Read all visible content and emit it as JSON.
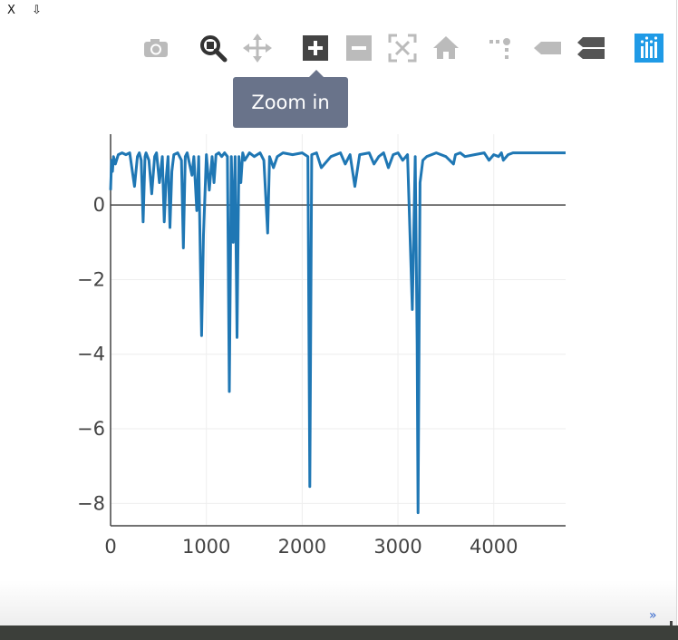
{
  "window": {
    "close_label": "X",
    "download_label": "⇩"
  },
  "toolbar": {
    "buttons": [
      {
        "name": "camera-icon",
        "title": "Download plot as a png"
      },
      {
        "name": "zoom-icon",
        "title": "Zoom"
      },
      {
        "name": "pan-icon",
        "title": "Pan"
      },
      {
        "name": "zoom-in-icon",
        "title": "Zoom in"
      },
      {
        "name": "zoom-out-icon",
        "title": "Zoom out"
      },
      {
        "name": "autoscale-icon",
        "title": "Autoscale"
      },
      {
        "name": "home-icon",
        "title": "Reset axes"
      },
      {
        "name": "spike-lines-icon",
        "title": "Toggle Spike Lines"
      },
      {
        "name": "hover-closest-icon",
        "title": "Show closest data on hover"
      },
      {
        "name": "hover-compare-icon",
        "title": "Compare data on hover"
      },
      {
        "name": "plotly-logo-icon",
        "title": "Produced with Plotly"
      }
    ],
    "active_color": "#333333",
    "inactive_color": "#bbbbbb",
    "logo_color": "#1f9ae6"
  },
  "tooltip": {
    "text": "Zoom in"
  },
  "chart_data": {
    "type": "line",
    "title": "",
    "xlabel": "",
    "ylabel": "",
    "xlim": [
      0,
      4750
    ],
    "ylim": [
      -8.6,
      1.9
    ],
    "xticks": [
      0,
      1000,
      2000,
      3000,
      4000
    ],
    "xtick_labels": [
      "0",
      "1000",
      "2000",
      "3000",
      "4000"
    ],
    "yticks": [
      0,
      -2,
      -4,
      -6,
      -8
    ],
    "ytick_labels": [
      "0",
      "−2",
      "−4",
      "−6",
      "−8"
    ],
    "grid": true,
    "line_color": "#1f77b4",
    "series": [
      {
        "baseline": 1.4,
        "x": [
          0,
          10,
          20,
          30,
          50,
          80,
          120,
          160,
          200,
          250,
          280,
          300,
          320,
          340,
          360,
          370,
          400,
          430,
          460,
          480,
          510,
          540,
          560,
          580,
          600,
          620,
          640,
          660,
          700,
          740,
          760,
          780,
          800,
          850,
          870,
          900,
          920,
          950,
          970,
          1000,
          1030,
          1060,
          1080,
          1100,
          1130,
          1160,
          1190,
          1220,
          1240,
          1260,
          1280,
          1300,
          1320,
          1340,
          1360,
          1380,
          1400,
          1450,
          1500,
          1560,
          1600,
          1640,
          1660,
          1700,
          1740,
          1800,
          1900,
          2000,
          2060,
          2080,
          2100,
          2150,
          2200,
          2300,
          2400,
          2450,
          2500,
          2550,
          2600,
          2700,
          2750,
          2800,
          2850,
          2900,
          2950,
          3000,
          3050,
          3100,
          3150,
          3180,
          3200,
          3210,
          3230,
          3260,
          3300,
          3400,
          3500,
          3580,
          3600,
          3650,
          3700,
          3800,
          3900,
          3950,
          4000,
          4050,
          4080,
          4100,
          4150,
          4200,
          4300,
          4500,
          4750
        ],
        "y": [
          0.4,
          1.2,
          0.9,
          1.3,
          1.1,
          1.35,
          1.4,
          1.35,
          1.4,
          0.5,
          1.3,
          1.4,
          1.2,
          -0.45,
          1.3,
          1.4,
          1.2,
          0.3,
          1.3,
          1.4,
          0.6,
          1.3,
          -0.45,
          0.7,
          1.3,
          -0.6,
          0.9,
          1.35,
          1.4,
          1.2,
          -1.15,
          1.3,
          1.4,
          0.8,
          1.3,
          -0.15,
          1.3,
          -3.5,
          -0.8,
          1.35,
          0.4,
          1.3,
          0.6,
          1.35,
          1.4,
          1.3,
          1.4,
          1.3,
          -5.0,
          1.3,
          -1.0,
          1.3,
          -3.55,
          1.3,
          0.6,
          1.4,
          1.2,
          1.4,
          1.3,
          1.4,
          1.2,
          -0.75,
          1.3,
          1.0,
          1.3,
          1.4,
          1.35,
          1.4,
          1.3,
          -7.55,
          1.35,
          1.4,
          1.0,
          1.3,
          1.4,
          1.1,
          1.35,
          0.5,
          1.35,
          1.4,
          1.1,
          1.3,
          1.4,
          1.0,
          1.35,
          1.4,
          1.2,
          1.35,
          -2.8,
          1.3,
          -3.7,
          -8.25,
          0.6,
          1.2,
          1.3,
          1.4,
          1.3,
          1.1,
          1.35,
          1.4,
          1.3,
          1.35,
          1.4,
          1.2,
          1.35,
          1.3,
          1.4,
          1.2,
          1.35,
          1.4,
          1.4,
          1.4,
          1.4
        ]
      }
    ]
  }
}
